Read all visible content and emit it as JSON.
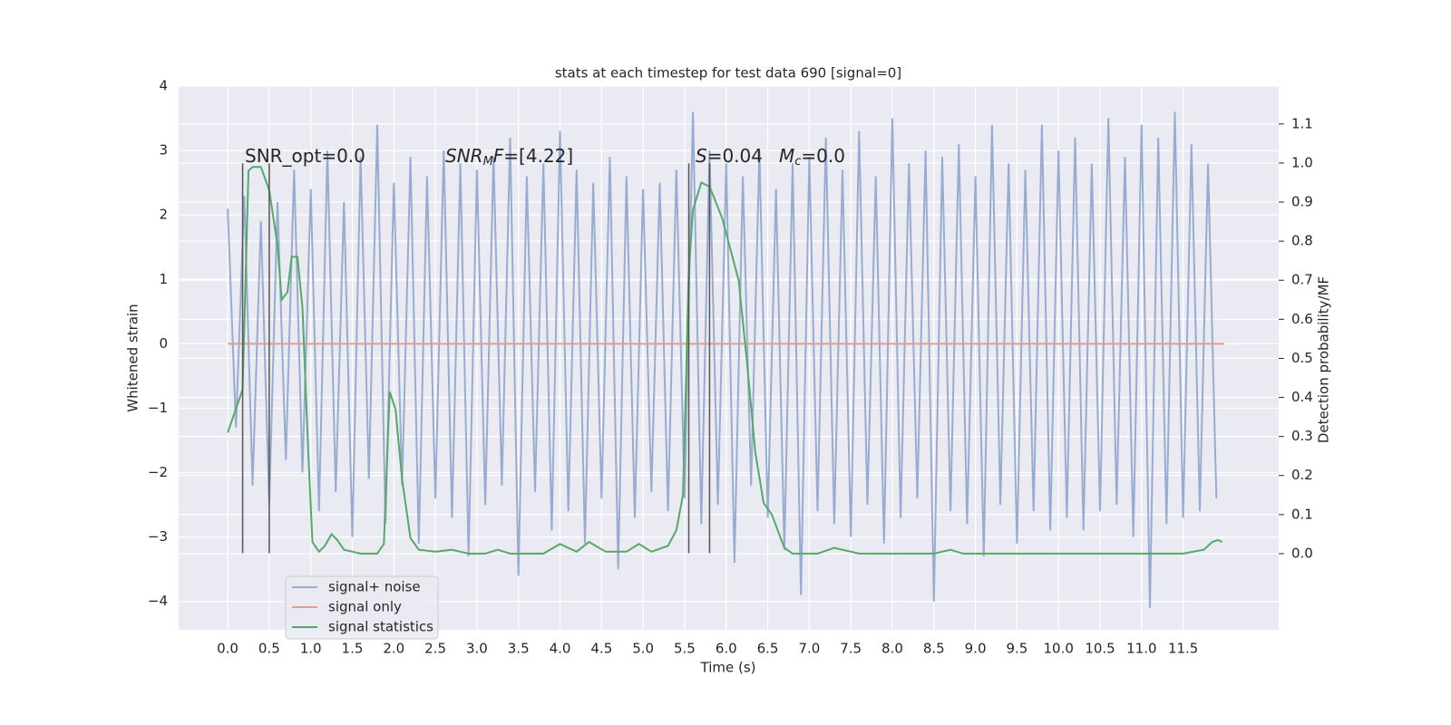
{
  "chart_data": {
    "type": "line",
    "title": "stats at each timestep for test data 690 [signal=0]",
    "xlabel": "Time (s)",
    "ylabel": "Whitened strain",
    "y2label": "Detection probability/MF",
    "xlim": [
      -0.59,
      12.65
    ],
    "ylim": [
      -4.44,
      4
    ],
    "y2lim": [
      -0.195,
      1.197
    ],
    "xticks": [
      {
        "value": 0,
        "label": "0.0"
      },
      0.5,
      {
        "value": 1,
        "label": "1.0"
      },
      1.5,
      {
        "value": 2,
        "label": "2.0"
      },
      2.5,
      {
        "value": 3,
        "label": "3.0"
      },
      3.5,
      {
        "value": 4,
        "label": "4.0"
      },
      4.5,
      {
        "value": 5,
        "label": "5.0"
      },
      5.5,
      {
        "value": 6,
        "label": "6.0"
      },
      6.5,
      {
        "value": 7,
        "label": "7.0"
      },
      7.5,
      {
        "value": 8,
        "label": "8.0"
      },
      8.5,
      {
        "value": 9,
        "label": "9.0"
      },
      9.5,
      {
        "value": 10,
        "label": "10.0"
      },
      10.5,
      {
        "value": 11,
        "label": "11.0"
      },
      11.5
    ],
    "yticks": [
      {
        "value": -4,
        "label": "−4"
      },
      {
        "value": -3,
        "label": "−3"
      },
      {
        "value": -2,
        "label": "−2"
      },
      {
        "value": -1,
        "label": "−1"
      },
      0,
      1,
      2,
      3,
      4
    ],
    "y2ticks": [
      {
        "value": 0,
        "label": "0.0"
      },
      0.1,
      0.2,
      0.3,
      0.4,
      0.5,
      0.6,
      0.7,
      0.8,
      0.9,
      {
        "value": 1,
        "label": "1.0"
      },
      1.1
    ],
    "grid": true,
    "series": [
      {
        "name": "signal+ noise",
        "color": "#98acd2",
        "axis": "y",
        "x": [
          0.0,
          0.1,
          0.2,
          0.3,
          0.4,
          0.5,
          0.6,
          0.7,
          0.8,
          0.9,
          1.0,
          1.1,
          1.2,
          1.3,
          1.4,
          1.5,
          1.6,
          1.7,
          1.8,
          1.9,
          2.0,
          2.1,
          2.2,
          2.3,
          2.4,
          2.5,
          2.6,
          2.7,
          2.8,
          2.9,
          3.0,
          3.1,
          3.2,
          3.3,
          3.4,
          3.5,
          3.6,
          3.7,
          3.8,
          3.9,
          4.0,
          4.1,
          4.2,
          4.3,
          4.4,
          4.5,
          4.6,
          4.7,
          4.8,
          4.9,
          5.0,
          5.1,
          5.2,
          5.3,
          5.4,
          5.5,
          5.6,
          5.7,
          5.8,
          5.9,
          6.0,
          6.1,
          6.2,
          6.3,
          6.4,
          6.5,
          6.6,
          6.7,
          6.8,
          6.9,
          7.0,
          7.1,
          7.2,
          7.3,
          7.4,
          7.5,
          7.6,
          7.7,
          7.8,
          7.9,
          8.0,
          8.1,
          8.2,
          8.3,
          8.4,
          8.5,
          8.6,
          8.7,
          8.8,
          8.9,
          9.0,
          9.1,
          9.2,
          9.3,
          9.4,
          9.5,
          9.6,
          9.7,
          9.8,
          9.9,
          10.0,
          10.1,
          10.2,
          10.3,
          10.4,
          10.5,
          10.6,
          10.7,
          10.8,
          10.9,
          11.0,
          11.1,
          11.2,
          11.3,
          11.4,
          11.5,
          11.6,
          11.7,
          11.8,
          11.9
        ],
        "values": [
          2.1,
          -1.3,
          2.3,
          -2.2,
          1.9,
          -2.5,
          2.2,
          -1.8,
          2.7,
          -2.0,
          2.4,
          -2.6,
          3.0,
          -2.3,
          2.2,
          -3.0,
          2.9,
          -2.1,
          3.4,
          -2.8,
          2.5,
          -2.2,
          2.9,
          -3.1,
          2.6,
          -2.4,
          3.0,
          -2.7,
          2.8,
          -3.3,
          2.7,
          -2.5,
          2.9,
          -2.2,
          3.2,
          -3.6,
          2.6,
          -2.3,
          2.8,
          -2.9,
          3.3,
          -2.6,
          2.7,
          -3.1,
          2.5,
          -2.4,
          2.9,
          -3.5,
          2.6,
          -2.7,
          2.4,
          -2.3,
          2.5,
          -2.6,
          2.7,
          -2.4,
          3.6,
          -2.8,
          3.0,
          -2.5,
          2.8,
          -3.4,
          2.6,
          -2.2,
          3.0,
          -2.7,
          2.4,
          -3.2,
          2.8,
          -3.9,
          2.9,
          -2.6,
          3.2,
          -2.8,
          2.7,
          -3.0,
          3.3,
          -2.5,
          2.6,
          -3.1,
          3.5,
          -2.7,
          2.8,
          -2.4,
          3.0,
          -4.0,
          2.9,
          -2.6,
          3.1,
          -2.8,
          2.6,
          -3.3,
          3.4,
          -2.5,
          2.8,
          -3.1,
          2.7,
          -2.6,
          3.4,
          -2.9,
          3.0,
          -2.7,
          3.2,
          -2.9,
          2.8,
          -2.6,
          3.5,
          -2.5,
          2.9,
          -3.0,
          3.4,
          -4.1,
          3.2,
          -2.8,
          3.6,
          -2.7,
          3.1,
          -2.6,
          2.8,
          -2.4
        ]
      },
      {
        "name": "signal only",
        "color": "#e3a088",
        "axis": "y",
        "x": [
          0,
          11.99
        ],
        "values": [
          0,
          0
        ]
      },
      {
        "name": "signal statistics",
        "color": "#55a868",
        "axis": "y2",
        "x": [
          0,
          0.18,
          0.25,
          0.3,
          0.4,
          0.5,
          0.6,
          0.65,
          0.72,
          0.77,
          0.84,
          0.9,
          0.97,
          1.02,
          1.1,
          1.17,
          1.25,
          1.32,
          1.4,
          1.6,
          1.8,
          1.88,
          1.95,
          2.02,
          2.1,
          2.2,
          2.3,
          2.5,
          2.7,
          2.9,
          3.1,
          3.25,
          3.4,
          3.8,
          4.0,
          4.2,
          4.35,
          4.55,
          4.8,
          4.95,
          5.1,
          5.3,
          5.4,
          5.48,
          5.55,
          5.6,
          5.7,
          5.8,
          5.95,
          6.15,
          6.25,
          6.35,
          6.45,
          6.55,
          6.7,
          6.8,
          7.1,
          7.3,
          7.6,
          8.0,
          8.5,
          8.7,
          8.85,
          9.5,
          10.5,
          11.5,
          11.75,
          11.85,
          11.92,
          11.97
        ],
        "values": [
          0.31,
          0.42,
          0.98,
          0.99,
          0.99,
          0.93,
          0.79,
          0.65,
          0.67,
          0.76,
          0.76,
          0.63,
          0.26,
          0.03,
          0.005,
          0.02,
          0.05,
          0.035,
          0.01,
          0,
          0,
          0.025,
          0.415,
          0.37,
          0.19,
          0.04,
          0.01,
          0.005,
          0.01,
          0,
          0,
          0.01,
          0,
          0,
          0.025,
          0.005,
          0.03,
          0.005,
          0.005,
          0.025,
          0.005,
          0.02,
          0.06,
          0.15,
          0.72,
          0.88,
          0.95,
          0.94,
          0.86,
          0.7,
          0.49,
          0.26,
          0.13,
          0.1,
          0.015,
          0,
          0,
          0.015,
          0,
          0,
          0,
          0.01,
          0,
          0,
          0,
          0,
          0.01,
          0.03,
          0.035,
          0.03
        ]
      }
    ],
    "vlines": {
      "x": [
        0.18,
        0.5,
        5.55,
        5.8
      ],
      "ymin": -3.25,
      "ymax": 2.8,
      "color": "#555555"
    },
    "annotations": [
      [
        "SNR_opt=0.0"
      ],
      [
        "SNR",
        "M",
        "F=[4.22]"
      ],
      [
        "S",
        "=0.04",
        "M",
        "c",
        "=0.0"
      ]
    ],
    "legend": "lower left"
  }
}
